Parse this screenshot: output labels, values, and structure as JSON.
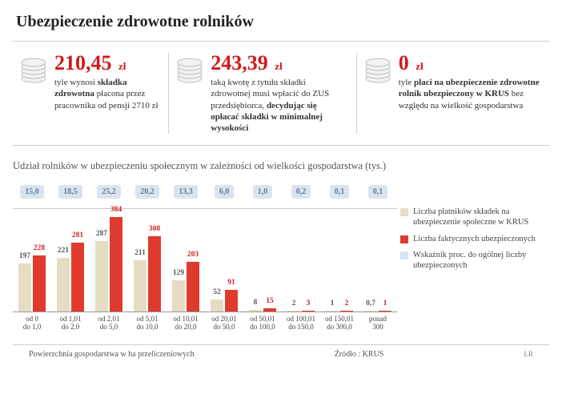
{
  "title": "Ubezpieczenie zdrowotne rolników",
  "colors": {
    "accent_red": "#d11a1a",
    "bar_beige": "#e6dcc4",
    "bar_red": "#e03a2e",
    "pct_pill_bg": "#d9e4f2",
    "pct_pill_text": "#6b7a8f",
    "text_dark": "#333333",
    "rule": "#cccccc"
  },
  "stats": [
    {
      "value": "210,45",
      "currency": "zł",
      "desc_html": "tyle wynosi <b>składka zdrowotna</b> płacona przez pracownika od pensji 2710 zł",
      "width_pct": 29
    },
    {
      "value": "243,39",
      "currency": "zł",
      "desc_html": "taką kwotę z tytułu składki zdrowotnej musi wpłacić do ZUS przedsię­biorca, <b>decydując się opłacać składki w mini­malnej wysokości</b>",
      "width_pct": 35
    },
    {
      "value": "0",
      "currency": "zł",
      "desc_html": "tyle <b>płaci na ubezpie­czenie zdrowotne rolnik ubezpieczony w KRUS</b> bez względu na wielkość gospodarstwa",
      "width_pct": 36
    }
  ],
  "chart": {
    "title": "Udział rolników w ubezpieczeniu społecznym w zależności od wielkości gospodarstwa (tys.)",
    "legend": [
      {
        "label": "Liczba płatników składek na ubezpieczenie społeczne w KRUS",
        "color": "#e6dcc4"
      },
      {
        "label": "Liczba faktycznych ubezpieczonych",
        "color": "#e03a2e"
      },
      {
        "label": "Wskaźnik proc. do ogólnej liczby ubezpieczonych",
        "color": "#d9e4f2"
      }
    ],
    "ymax": 384,
    "categories": [
      {
        "xlabel": "od 0\ndo 1,0",
        "pct": "15,0",
        "v1": 197,
        "v2": 228
      },
      {
        "xlabel": "od 1,01\ndo 2,0",
        "pct": "18,5",
        "v1": 221,
        "v2": 281
      },
      {
        "xlabel": "od 2,01\ndo 5,0",
        "pct": "25,2",
        "v1": 287,
        "v2": 384
      },
      {
        "xlabel": "od 5,01\ndo 10,0",
        "pct": "20,2",
        "v1": 211,
        "v2": 308
      },
      {
        "xlabel": "od 10,01\ndo 20,0",
        "pct": "13,3",
        "v1": 129,
        "v2": 203
      },
      {
        "xlabel": "od 20,01\ndo 50,0",
        "pct": "6,0",
        "v1": 52,
        "v2": 91
      },
      {
        "xlabel": "od 50,01\ndo 100,0",
        "pct": "1,0",
        "v1": 8,
        "v2": 15
      },
      {
        "xlabel": "od 100,01\ndo 150,0",
        "pct": "0,2",
        "v1": 2,
        "v2": 3
      },
      {
        "xlabel": "od 150,01\ndo 300,0",
        "pct": "0,1",
        "v1": 1,
        "v2": 2
      },
      {
        "xlabel": "ponad\n300",
        "pct": "0,1",
        "v1": 0.7,
        "v2": 1
      }
    ],
    "bar_colors": {
      "v1": "#e6dcc4",
      "v2": "#e03a2e"
    },
    "bar_label_colors": {
      "v1": "#555555",
      "v2": "#c22"
    },
    "xaxis_label": "Powierzchnia gospodarstwa w ha przeliczeniowych",
    "source_label": "Źródło : KRUS",
    "signature": "ŁR"
  }
}
